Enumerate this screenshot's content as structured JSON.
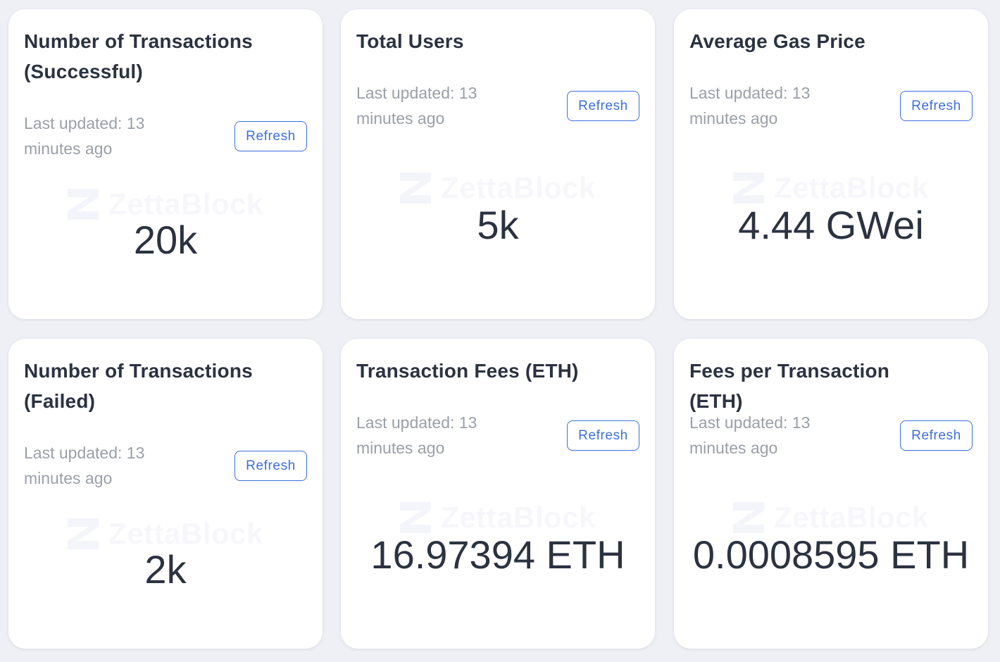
{
  "cards": [
    {
      "title": "Number of Transactions (Successful)",
      "updated": "Last updated: 13 minutes ago",
      "refresh_label": "Refresh",
      "watermark": "ZettaBlock",
      "value": "20k"
    },
    {
      "title": "Total Users",
      "updated": "Last updated: 13 minutes ago",
      "refresh_label": "Refresh",
      "watermark": "ZettaBlock",
      "value": "5k"
    },
    {
      "title": "Average Gas Price",
      "updated": "Last updated: 13 minutes ago",
      "refresh_label": "Refresh",
      "watermark": "ZettaBlock",
      "value": "4.44 GWei"
    },
    {
      "title": "Number of Transactions (Failed)",
      "updated": "Last updated: 13 minutes ago",
      "refresh_label": "Refresh",
      "watermark": "ZettaBlock",
      "value": "2k"
    },
    {
      "title": "Transaction Fees (ETH)",
      "updated": "Last updated: 13 minutes ago",
      "refresh_label": "Refresh",
      "watermark": "ZettaBlock",
      "value": "16.97394 ETH"
    },
    {
      "title": "Fees per Transaction (ETH)",
      "updated": "Last updated: 13 minutes ago",
      "refresh_label": "Refresh",
      "watermark": "ZettaBlock",
      "value": "0.0008595 ETH"
    }
  ],
  "colors": {
    "background": "#eef0f5",
    "card": "#ffffff",
    "title": "#2b3240",
    "muted": "#9a9fa8",
    "accent": "#3d6ee0",
    "watermark": "#f1f2f8"
  },
  "icons": {
    "watermark_logo": "zettablock-logo-icon"
  }
}
